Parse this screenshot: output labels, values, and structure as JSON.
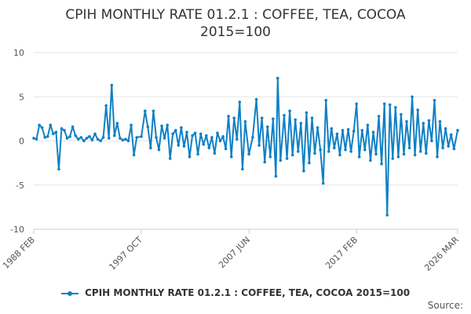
{
  "chart_data": {
    "type": "line",
    "title_line1": "CPIH MONTHLY RATE 01.2.1 : COFFEE, TEA, COCOA",
    "title_line2": "2015=100",
    "y_ticks": [
      "10",
      "5",
      "0",
      "-5",
      "-10"
    ],
    "ylim": [
      -10,
      10
    ],
    "x_ticks": [
      "1988 FEB",
      "1997 OCT",
      "2007 JUN",
      "2017 FEB",
      "2026 MAR"
    ],
    "xlim": [
      "1988-02",
      "2026-03"
    ],
    "grid": true,
    "legend_position": "bottom",
    "series": [
      {
        "name": "CPIH MONTHLY RATE 01.2.1 : COFFEE, TEA, COCOA 2015=100",
        "color": "#0e80c5",
        "points": [
          [
            "1988-02",
            0.3
          ],
          [
            "1988-05",
            0.2
          ],
          [
            "1988-08",
            1.8
          ],
          [
            "1988-11",
            1.5
          ],
          [
            "1989-02",
            0.4
          ],
          [
            "1989-05",
            0.5
          ],
          [
            "1989-08",
            1.8
          ],
          [
            "1989-11",
            0.8
          ],
          [
            "1990-02",
            1.0
          ],
          [
            "1990-05",
            -3.2
          ],
          [
            "1990-08",
            1.4
          ],
          [
            "1990-11",
            1.2
          ],
          [
            "1991-02",
            0.3
          ],
          [
            "1991-05",
            0.5
          ],
          [
            "1991-08",
            1.6
          ],
          [
            "1991-11",
            0.6
          ],
          [
            "1992-02",
            0.2
          ],
          [
            "1992-05",
            0.4
          ],
          [
            "1992-08",
            0.0
          ],
          [
            "1992-11",
            0.3
          ],
          [
            "1993-02",
            0.5
          ],
          [
            "1993-05",
            0.1
          ],
          [
            "1993-08",
            0.8
          ],
          [
            "1993-11",
            0.2
          ],
          [
            "1994-02",
            0.0
          ],
          [
            "1994-05",
            0.4
          ],
          [
            "1994-08",
            4.0
          ],
          [
            "1994-11",
            0.3
          ],
          [
            "1995-02",
            6.3
          ],
          [
            "1995-05",
            0.6
          ],
          [
            "1995-08",
            2.0
          ],
          [
            "1995-11",
            0.3
          ],
          [
            "1996-02",
            0.1
          ],
          [
            "1996-05",
            0.2
          ],
          [
            "1996-08",
            0.0
          ],
          [
            "1996-11",
            1.8
          ],
          [
            "1997-02",
            -1.6
          ],
          [
            "1997-05",
            0.4
          ],
          [
            "1997-10",
            0.5
          ],
          [
            "1998-02",
            3.4
          ],
          [
            "1998-05",
            1.6
          ],
          [
            "1998-08",
            -0.8
          ],
          [
            "1998-11",
            3.4
          ],
          [
            "1999-02",
            0.4
          ],
          [
            "1999-05",
            -1.0
          ],
          [
            "1999-08",
            1.7
          ],
          [
            "1999-11",
            0.3
          ],
          [
            "2000-02",
            1.8
          ],
          [
            "2000-05",
            -2.0
          ],
          [
            "2000-08",
            0.8
          ],
          [
            "2000-11",
            1.2
          ],
          [
            "2001-02",
            -0.5
          ],
          [
            "2001-05",
            1.5
          ],
          [
            "2001-08",
            -0.6
          ],
          [
            "2001-11",
            1.0
          ],
          [
            "2002-02",
            -1.8
          ],
          [
            "2002-05",
            0.6
          ],
          [
            "2002-08",
            0.9
          ],
          [
            "2002-11",
            -1.5
          ],
          [
            "2003-02",
            0.8
          ],
          [
            "2003-05",
            -0.4
          ],
          [
            "2003-08",
            0.6
          ],
          [
            "2003-11",
            -0.8
          ],
          [
            "2004-02",
            0.4
          ],
          [
            "2004-05",
            -1.4
          ],
          [
            "2004-08",
            0.9
          ],
          [
            "2004-11",
            0.0
          ],
          [
            "2005-02",
            0.5
          ],
          [
            "2005-05",
            -0.9
          ],
          [
            "2005-08",
            2.8
          ],
          [
            "2005-11",
            -1.8
          ],
          [
            "2006-02",
            2.6
          ],
          [
            "2006-05",
            0.2
          ],
          [
            "2006-08",
            4.4
          ],
          [
            "2006-11",
            -3.2
          ],
          [
            "2007-02",
            2.2
          ],
          [
            "2007-06",
            -1.5
          ],
          [
            "2007-10",
            0.4
          ],
          [
            "2008-02",
            4.7
          ],
          [
            "2008-05",
            -0.5
          ],
          [
            "2008-08",
            2.6
          ],
          [
            "2008-11",
            -2.4
          ],
          [
            "2009-02",
            1.6
          ],
          [
            "2009-05",
            -1.8
          ],
          [
            "2009-08",
            2.5
          ],
          [
            "2009-11",
            -4.0
          ],
          [
            "2010-01",
            7.1
          ],
          [
            "2010-04",
            -2.2
          ],
          [
            "2010-08",
            2.9
          ],
          [
            "2010-11",
            -2.0
          ],
          [
            "2011-02",
            3.4
          ],
          [
            "2011-05",
            -1.6
          ],
          [
            "2011-08",
            2.4
          ],
          [
            "2011-11",
            -1.2
          ],
          [
            "2012-02",
            2.0
          ],
          [
            "2012-05",
            -3.4
          ],
          [
            "2012-08",
            3.2
          ],
          [
            "2012-11",
            -2.5
          ],
          [
            "2013-02",
            2.6
          ],
          [
            "2013-05",
            -1.4
          ],
          [
            "2013-08",
            1.5
          ],
          [
            "2013-11",
            -1.0
          ],
          [
            "2014-02",
            -4.8
          ],
          [
            "2014-05",
            4.6
          ],
          [
            "2014-08",
            -1.2
          ],
          [
            "2014-11",
            1.4
          ],
          [
            "2015-02",
            -0.8
          ],
          [
            "2015-05",
            0.8
          ],
          [
            "2015-08",
            -1.6
          ],
          [
            "2015-11",
            1.2
          ],
          [
            "2016-02",
            -1.0
          ],
          [
            "2016-05",
            1.3
          ],
          [
            "2016-08",
            -1.2
          ],
          [
            "2016-11",
            1.1
          ],
          [
            "2017-02",
            4.2
          ],
          [
            "2017-05",
            -1.8
          ],
          [
            "2017-08",
            1.2
          ],
          [
            "2017-11",
            -1.0
          ],
          [
            "2018-02",
            1.8
          ],
          [
            "2018-05",
            -2.2
          ],
          [
            "2018-08",
            1.0
          ],
          [
            "2018-11",
            -1.5
          ],
          [
            "2019-02",
            2.8
          ],
          [
            "2019-05",
            -2.6
          ],
          [
            "2019-08",
            4.2
          ],
          [
            "2019-11",
            -8.4
          ],
          [
            "2020-02",
            4.1
          ],
          [
            "2020-05",
            -2.0
          ],
          [
            "2020-08",
            3.8
          ],
          [
            "2020-11",
            -1.8
          ],
          [
            "2021-02",
            3.0
          ],
          [
            "2021-05",
            -1.5
          ],
          [
            "2021-08",
            2.2
          ],
          [
            "2021-11",
            -0.8
          ],
          [
            "2022-02",
            5.0
          ],
          [
            "2022-05",
            -1.6
          ],
          [
            "2022-08",
            3.5
          ],
          [
            "2022-11",
            -1.2
          ],
          [
            "2023-02",
            2.0
          ],
          [
            "2023-05",
            -1.4
          ],
          [
            "2023-08",
            2.3
          ],
          [
            "2023-11",
            0.0
          ],
          [
            "2024-02",
            4.6
          ],
          [
            "2024-05",
            -1.8
          ],
          [
            "2024-08",
            2.2
          ],
          [
            "2024-11",
            -0.8
          ],
          [
            "2025-02",
            1.4
          ],
          [
            "2025-05",
            -0.6
          ],
          [
            "2025-08",
            0.7
          ],
          [
            "2025-11",
            -0.9
          ],
          [
            "2026-03",
            1.2
          ]
        ]
      }
    ]
  },
  "footer": {
    "source_label": "Source:"
  }
}
